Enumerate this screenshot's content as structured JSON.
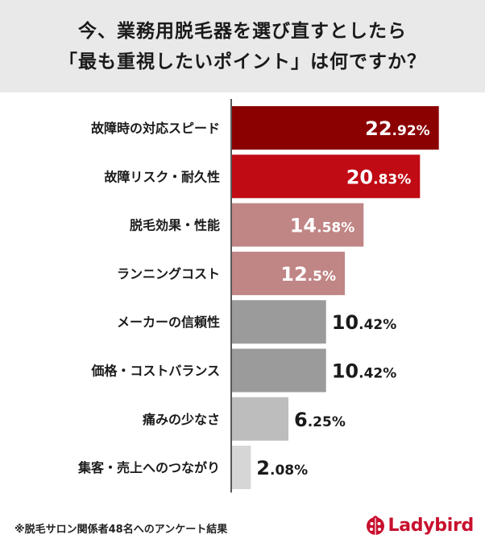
{
  "title": {
    "line1": "今、業務用脱毛器を選び直すとしたら",
    "line2": "「最も重視したいポイント」は何ですか？"
  },
  "chart_data": {
    "type": "bar",
    "orientation": "horizontal",
    "title": "今、業務用脱毛器を選び直すとしたら「最も重視したいポイント」は何ですか？",
    "categories": [
      "故障時の対応スピード",
      "故障リスク・耐久性",
      "脱毛効果・性能",
      "ランニングコスト",
      "メーカーの信頼性",
      "価格・コストバランス",
      "痛みの少なさ",
      "集客・売上へのつながり"
    ],
    "values": [
      22.92,
      20.83,
      14.58,
      12.5,
      10.42,
      10.42,
      6.25,
      2.08
    ],
    "value_labels": [
      "22.92%",
      "20.83%",
      "14.58%",
      "12.5%",
      "10.42%",
      "10.42%",
      "6.25%",
      "2.08%"
    ],
    "unit": "%",
    "xlim": [
      0,
      25
    ],
    "bar_colors": [
      "#8b0000",
      "#c00a14",
      "#c08585",
      "#c08585",
      "#9b9b9b",
      "#9b9b9b",
      "#bdbdbd",
      "#d6d6d6"
    ],
    "label_colors": [
      "#ffffff",
      "#ffffff",
      "#ffffff",
      "#ffffff",
      "#1a1a1a",
      "#1a1a1a",
      "#1a1a1a",
      "#1a1a1a"
    ],
    "grid": false,
    "legend": "none"
  },
  "footnote": "※脱毛サロン関係者48名へのアンケート結果",
  "brand": {
    "name": "Ladybird",
    "color": "#c8102e",
    "icon": "ladybug-icon"
  }
}
